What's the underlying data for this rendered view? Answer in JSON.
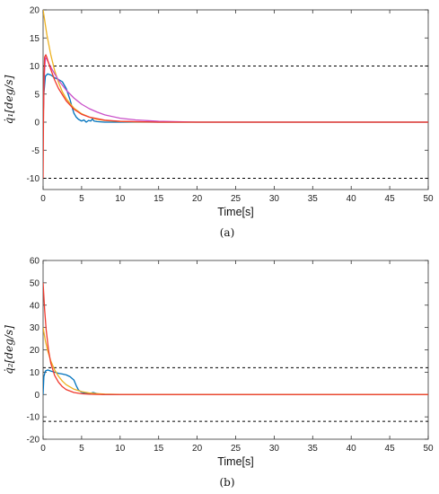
{
  "colors": {
    "blue": "#0072BD",
    "orange": "#EDB120",
    "magenta": "#C94FC9",
    "red": "#F0382C",
    "limit": "#000000"
  },
  "chart_data": [
    {
      "type": "line",
      "caption": "(a)",
      "xlabel": "Time[s]",
      "ylabel": "q̇₁[deg/s]",
      "xlim": [
        0,
        50
      ],
      "ylim": [
        -12,
        20
      ],
      "xticks": [
        0,
        5,
        10,
        15,
        20,
        25,
        30,
        35,
        40,
        45,
        50
      ],
      "yticks": [
        -10,
        -5,
        0,
        5,
        10,
        15,
        20
      ],
      "grid": false,
      "reference_lines": [
        10,
        -10
      ],
      "series": [
        {
          "color": "blue",
          "x": [
            0,
            0.1,
            0.3,
            0.6,
            0.8,
            1.0,
            1.5,
            2.0,
            2.5,
            3.0,
            3.5,
            3.8,
            4.0,
            4.3,
            4.6,
            5.0,
            5.3,
            5.6,
            5.9,
            6.2,
            6.4,
            6.6,
            7.0,
            8.0,
            50
          ],
          "y": [
            0,
            5,
            8.2,
            8.6,
            8.5,
            8.4,
            7.9,
            7.6,
            7.2,
            6.0,
            4.0,
            2.5,
            1.6,
            0.9,
            0.5,
            0.2,
            0.4,
            0.0,
            0.3,
            0.2,
            0.6,
            0.2,
            0.1,
            0.0,
            0.0
          ]
        },
        {
          "color": "orange",
          "x": [
            0,
            0.5,
            1,
            1.5,
            2,
            2.5,
            3,
            4,
            5,
            6,
            7,
            8,
            10,
            12,
            15,
            20,
            50
          ],
          "y": [
            20,
            15.5,
            12,
            9.2,
            7.1,
            5.4,
            4.2,
            2.5,
            1.5,
            0.9,
            0.5,
            0.3,
            0.1,
            0.04,
            0.0,
            0.0,
            0.0
          ]
        },
        {
          "color": "magenta",
          "x": [
            0,
            0.15,
            0.3,
            0.5,
            0.8,
            1,
            1.5,
            2,
            3,
            4,
            5,
            6,
            7,
            8,
            10,
            12,
            15,
            20,
            50
          ],
          "y": [
            0,
            8,
            11.5,
            11.2,
            10.3,
            9.8,
            8.6,
            7.5,
            5.7,
            4.3,
            3.2,
            2.4,
            1.8,
            1.3,
            0.7,
            0.4,
            0.15,
            0.0,
            0.0
          ]
        },
        {
          "color": "red",
          "x": [
            0,
            0.05,
            0.12,
            0.2,
            0.35,
            0.5,
            0.7,
            1,
            1.5,
            2,
            3,
            4,
            5,
            6,
            8,
            10,
            15,
            20,
            50
          ],
          "y": [
            -10,
            0,
            8,
            11.6,
            12.0,
            11.5,
            10.6,
            9.4,
            7.5,
            6.0,
            3.8,
            2.3,
            1.4,
            0.9,
            0.35,
            0.15,
            0.0,
            0.0,
            0.0
          ]
        }
      ]
    },
    {
      "type": "line",
      "caption": "(b)",
      "xlabel": "Time[s]",
      "ylabel": "q̇₂[deg/s]",
      "xlim": [
        0,
        50
      ],
      "ylim": [
        -20,
        60
      ],
      "xticks": [
        0,
        5,
        10,
        15,
        20,
        25,
        30,
        35,
        40,
        45,
        50
      ],
      "yticks": [
        -20,
        -10,
        0,
        10,
        20,
        30,
        40,
        50,
        60
      ],
      "grid": false,
      "reference_lines": [
        12,
        -12
      ],
      "series": [
        {
          "color": "blue",
          "x": [
            0,
            0.1,
            0.3,
            0.6,
            1,
            1.5,
            2,
            2.5,
            3,
            3.5,
            4,
            4.3,
            4.6,
            5,
            5.5,
            6,
            6.5,
            7,
            7.5,
            8,
            50
          ],
          "y": [
            0,
            8,
            10.5,
            11,
            10.5,
            10,
            9.5,
            9.2,
            8.8,
            8.0,
            6.5,
            4.0,
            2.0,
            1.0,
            0.5,
            0.4,
            0.9,
            0.4,
            0.1,
            0.0,
            0.0
          ]
        },
        {
          "color": "orange",
          "x": [
            0,
            0.3,
            0.6,
            1,
            1.5,
            2,
            2.5,
            3,
            4,
            5,
            6,
            7,
            8,
            10,
            12,
            50
          ],
          "y": [
            30,
            24,
            19.5,
            15,
            11,
            8.2,
            6,
            4.4,
            2.4,
            1.3,
            0.7,
            0.4,
            0.2,
            0.05,
            0.0,
            0.0
          ]
        },
        {
          "color": "red",
          "x": [
            0,
            0.2,
            0.4,
            0.7,
            1,
            1.5,
            2,
            2.5,
            3,
            4,
            5,
            6,
            7,
            8,
            10,
            50
          ],
          "y": [
            50,
            38,
            29,
            20,
            14,
            8.5,
            5.5,
            3.5,
            2.2,
            0.9,
            0.35,
            0.15,
            0.05,
            0.0,
            0.0,
            0.0
          ]
        }
      ]
    }
  ]
}
